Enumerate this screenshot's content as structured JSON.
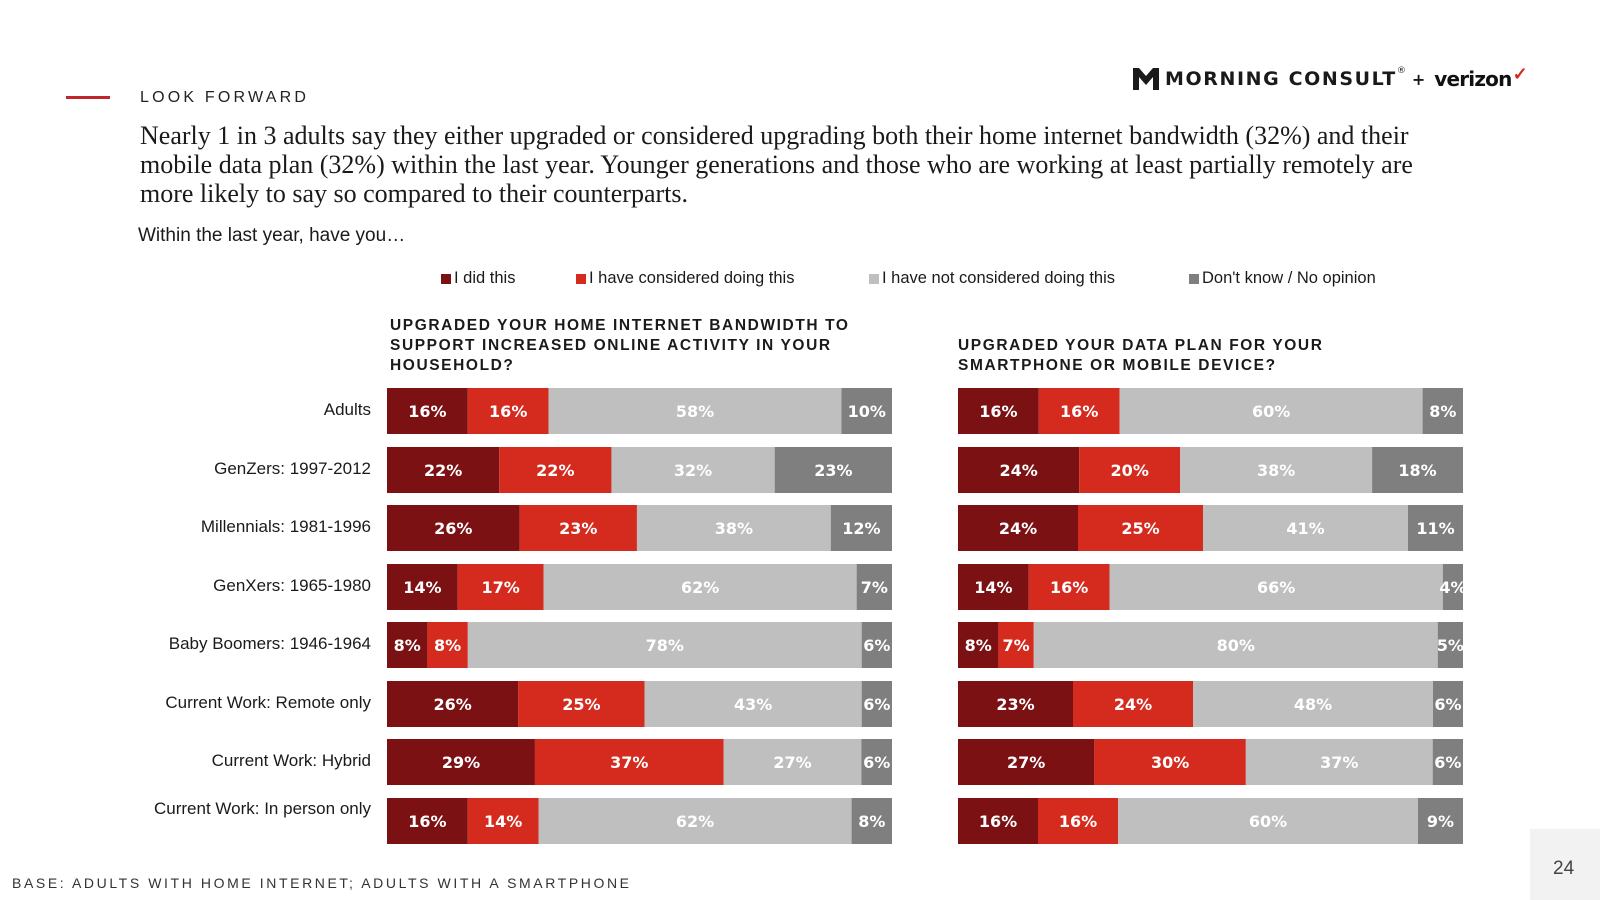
{
  "slide": {
    "section_label": "LOOK FORWARD",
    "headline": "Nearly 1 in 3 adults say they either upgraded or considered upgrading both their home internet bandwidth (32%) and their mobile data plan (32%) within the last year. Younger generations and those who are working at least partially remotely are more likely to say so compared to their counterparts.",
    "question": "Within the last year, have you…",
    "base_note": "BASE: ADULTS WITH HOME INTERNET; ADULTS WITH A SMARTPHONE",
    "page_number": "24"
  },
  "logo": {
    "brand_text": "MORNING CONSULT",
    "brand_mark": "®",
    "plus": "+",
    "partner_text": "verizon",
    "partner_mark": "✓"
  },
  "legend": [
    {
      "label": "I did this",
      "color": "#7b1113"
    },
    {
      "label": "I have considered doing this",
      "color": "#d52b1e"
    },
    {
      "label": "I have not considered doing this",
      "color": "#bfbfbf"
    },
    {
      "label": "Don't know / No opinion",
      "color": "#7f7f7f"
    }
  ],
  "chart_data": [
    {
      "type": "bar",
      "orientation": "horizontal",
      "stacked": true,
      "title": "UPGRADED YOUR HOME INTERNET BANDWIDTH TO SUPPORT INCREASED ONLINE ACTIVITY IN YOUR HOUSEHOLD?",
      "categories": [
        "Adults",
        "GenZers: 1997-2012",
        "Millennials: 1981-1996",
        "GenXers: 1965-1980",
        "Baby Boomers: 1946-1964",
        "Current Work: Remote only",
        "Current Work: Hybrid",
        "Current Work: In person only"
      ],
      "series": [
        {
          "name": "I did this",
          "values": [
            16,
            22,
            26,
            14,
            8,
            26,
            29,
            16
          ],
          "labels": [
            "16%",
            "22%",
            "26%",
            "14%",
            "8%",
            "26%",
            "29%",
            "16%"
          ]
        },
        {
          "name": "I have considered doing this",
          "values": [
            16,
            22,
            23,
            17,
            8,
            25,
            37,
            14
          ],
          "labels": [
            "16%",
            "22%",
            "23%",
            "17%",
            "8%",
            "25%",
            "37%",
            "14%"
          ]
        },
        {
          "name": "I have not considered doing this",
          "values": [
            58,
            32,
            38,
            62,
            78,
            43,
            27,
            62
          ],
          "labels": [
            "58%",
            "32%",
            "38%",
            "62%",
            "78%",
            "43%",
            "27%",
            "62%"
          ]
        },
        {
          "name": "Don't know / No opinion",
          "values": [
            10,
            23,
            12,
            7,
            6,
            6,
            6,
            8
          ],
          "labels": [
            "10%",
            "23%",
            "12%",
            "7%",
            "6%",
            "6%",
            "6%",
            "8%"
          ]
        }
      ],
      "xlim": [
        0,
        100
      ]
    },
    {
      "type": "bar",
      "orientation": "horizontal",
      "stacked": true,
      "title": "UPGRADED YOUR DATA PLAN FOR YOUR SMARTPHONE OR MOBILE DEVICE?",
      "categories": [
        "Adults",
        "GenZers: 1997-2012",
        "Millennials: 1981-1996",
        "GenXers: 1965-1980",
        "Baby Boomers: 1946-1964",
        "Current Work: Remote only",
        "Current Work: Hybrid",
        "Current Work: In person only"
      ],
      "series": [
        {
          "name": "I did this",
          "values": [
            16,
            24,
            24,
            14,
            8,
            23,
            27,
            16
          ],
          "labels": [
            "16%",
            "24%",
            "24%",
            "14%",
            "8%",
            "23%",
            "27%",
            "16%"
          ]
        },
        {
          "name": "I have considered doing this",
          "values": [
            16,
            20,
            25,
            16,
            7,
            24,
            30,
            16
          ],
          "labels": [
            "16%",
            "20%",
            "25%",
            "16%",
            "7%",
            "24%",
            "30%",
            "16%"
          ]
        },
        {
          "name": "I have not considered doing this",
          "values": [
            60,
            38,
            41,
            66,
            80,
            48,
            37,
            60
          ],
          "labels": [
            "60%",
            "38%",
            "41%",
            "66%",
            "80%",
            "48%",
            "37%",
            "60%"
          ]
        },
        {
          "name": "Don't know / No opinion",
          "values": [
            8,
            18,
            11,
            4,
            5,
            6,
            6,
            9
          ],
          "labels": [
            "8%",
            "18%",
            "11%",
            "4%",
            "5%",
            "6%",
            "6%",
            "9%"
          ]
        }
      ],
      "xlim": [
        0,
        100
      ]
    }
  ]
}
